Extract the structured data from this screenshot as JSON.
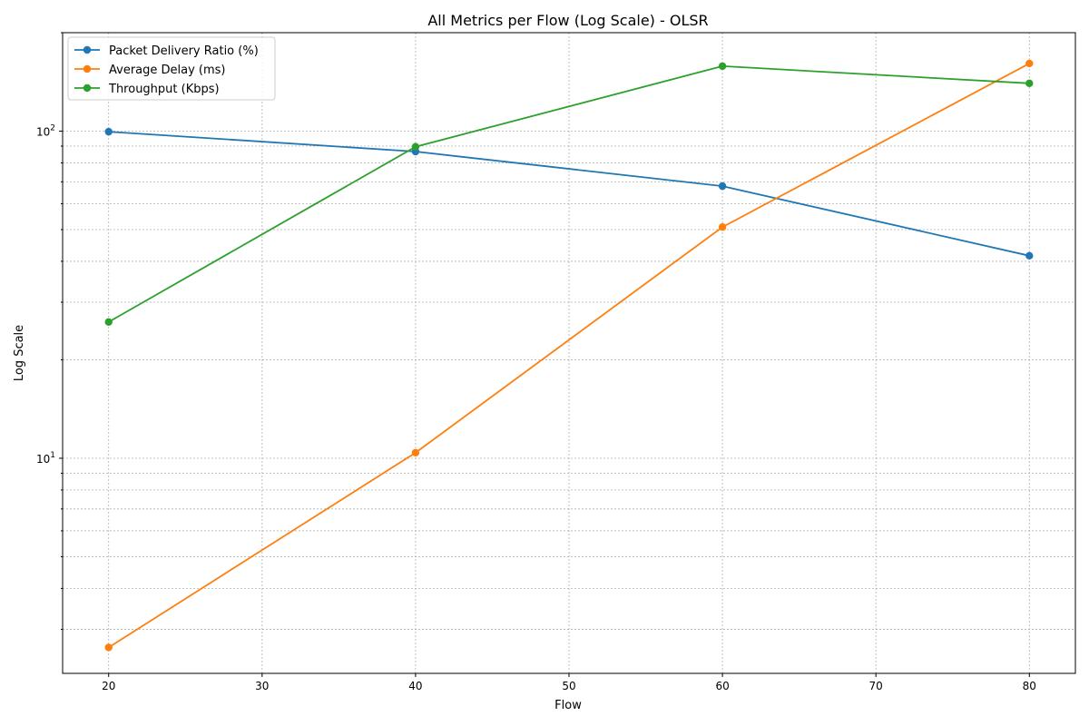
{
  "chart_data": {
    "type": "line",
    "title": "All Metrics per Flow (Log Scale) - OLSR",
    "xlabel": "Flow",
    "ylabel": "Log Scale",
    "x": [
      20,
      40,
      60,
      80
    ],
    "xlim": [
      17,
      83
    ],
    "xticks": [
      20,
      30,
      40,
      50,
      60,
      70,
      80
    ],
    "yscale": "log",
    "ylim": [
      2.2,
      200
    ],
    "yticks": [
      {
        "value": 10,
        "base": "10",
        "exp": "1"
      },
      {
        "value": 100,
        "base": "10",
        "exp": "2"
      }
    ],
    "grid": true,
    "legend_position": "top-left",
    "series": [
      {
        "name": "Packet Delivery Ratio (%)",
        "color": "#1f77b4",
        "values": [
          99.6,
          86.6,
          67.9,
          41.6
        ]
      },
      {
        "name": "Average Delay (ms)",
        "color": "#ff7f0e",
        "values": [
          2.64,
          10.4,
          50.9,
          161
        ]
      },
      {
        "name": "Throughput (Kbps)",
        "color": "#2ca02c",
        "values": [
          26.1,
          89.6,
          158,
          140
        ]
      }
    ]
  }
}
